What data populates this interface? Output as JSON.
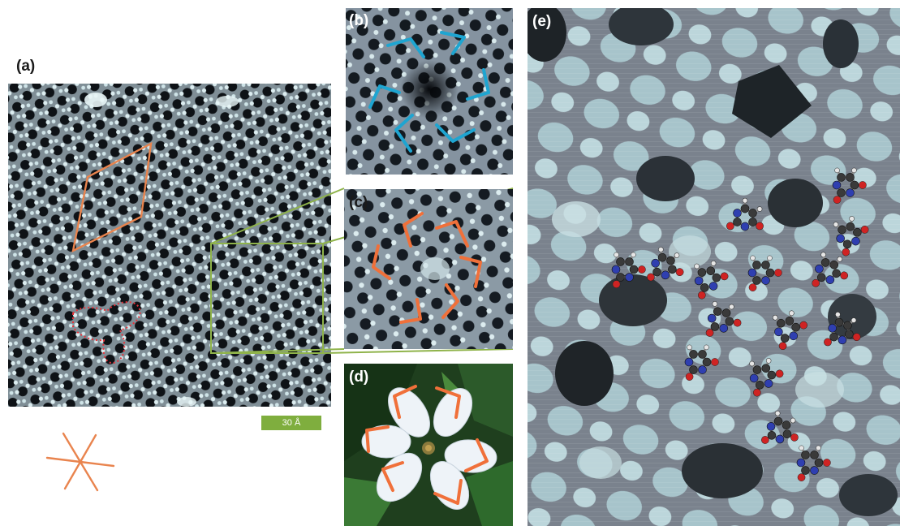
{
  "figure": {
    "panels": [
      {
        "label": "(a)"
      },
      {
        "label": "(b)"
      },
      {
        "label": "(c)"
      },
      {
        "label": "(d)"
      },
      {
        "label": "(e)"
      }
    ],
    "scale_bar": {
      "text": "30 Å"
    },
    "colors": {
      "stm_background": "#7f8e96",
      "stm_bright": "#d9ecef",
      "stm_dark": "#0e1216",
      "rhombus": "#e9844e",
      "outline_dotted": "#e6323a",
      "outline_blue": "#1ea5d1",
      "outline_orange": "#f0703a",
      "zoom_lines": "#8fb34a",
      "scale_bar": "#7fae3e",
      "leaf_green": "#27612c",
      "carbon": "#3a3a3a",
      "nitrogen": "#2f3fb0",
      "oxygen": "#cf2323",
      "hydrogen": "#e6e6e6"
    }
  }
}
